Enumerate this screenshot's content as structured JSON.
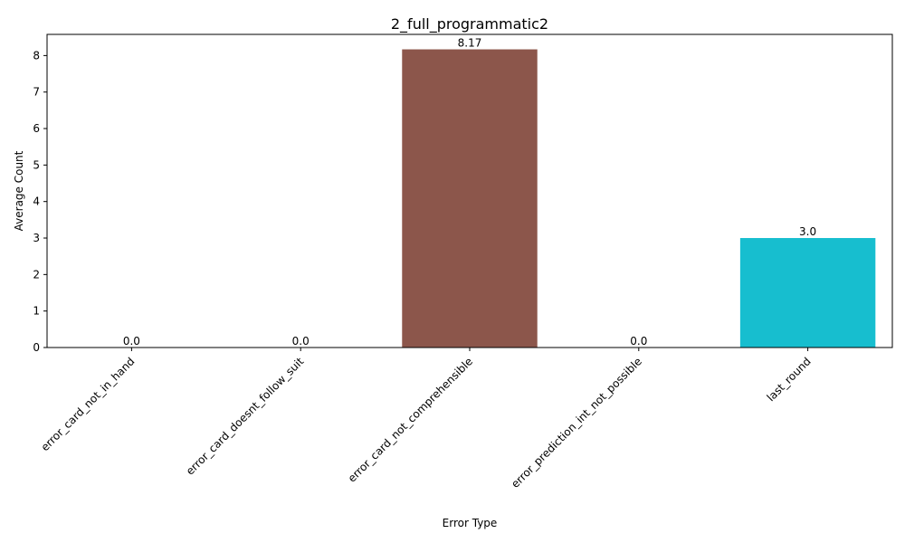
{
  "chart_data": {
    "type": "bar",
    "title": "2_full_programmatic2",
    "xlabel": "Error Type",
    "ylabel": "Average Count",
    "categories": [
      "error_card_not_in_hand",
      "error_card_doesnt_follow_suit",
      "error_card_not_comprehensible",
      "error_prediction_int_not_possible",
      "last_round"
    ],
    "values": [
      0.0,
      0.0,
      8.17,
      0.0,
      3.0
    ],
    "value_labels": [
      "0.0",
      "0.0",
      "8.17",
      "0.0",
      "3.0"
    ],
    "colors": [
      "#1f77b4",
      "#ff7f0e",
      "#8c564b",
      "#d62728",
      "#17becf"
    ],
    "ylim": [
      0,
      8.58
    ],
    "yticks": [
      0,
      1,
      2,
      3,
      4,
      5,
      6,
      7,
      8
    ],
    "grid": false,
    "legend": "none"
  }
}
